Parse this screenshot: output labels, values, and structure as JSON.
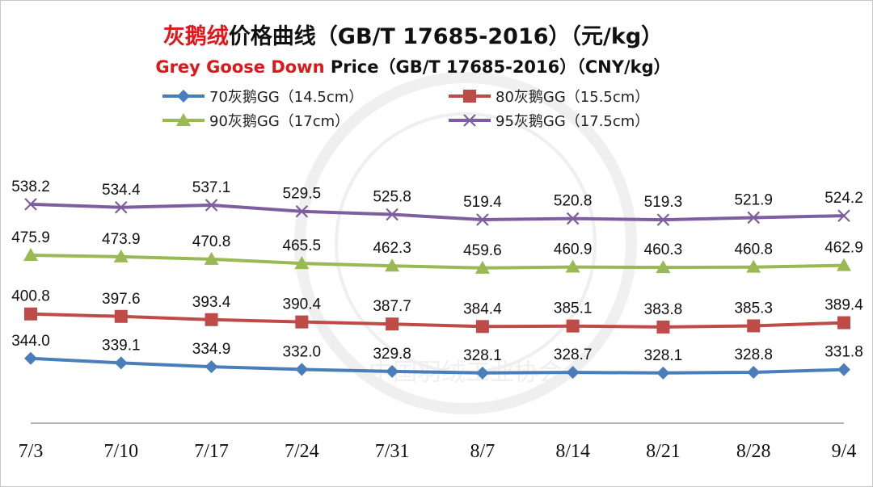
{
  "chart_data": {
    "type": "line",
    "title_cn_highlight": "灰鹅绒",
    "title_cn_rest": "价格曲线（GB/T 17685-2016）（元/kg）",
    "title_en_highlight": "Grey Goose Down",
    "title_en_rest": " Price（GB/T 17685-2016）（CNY/kg）",
    "watermark_text": "中国羽绒工业协会",
    "categories": [
      "7/3",
      "7/10",
      "7/17",
      "7/24",
      "7/31",
      "8/7",
      "8/14",
      "8/21",
      "8/28",
      "9/4"
    ],
    "series": [
      {
        "name": "70灰鹅GG（14.5cm）",
        "color": "#4a7ebb",
        "marker": "diamond",
        "values": [
          344.0,
          339.1,
          334.9,
          332.0,
          329.8,
          328.1,
          328.7,
          328.1,
          328.8,
          331.8
        ],
        "labels": [
          "344.0",
          "339.1",
          "334.9",
          "332.0",
          "329.8",
          "328.1",
          "328.7",
          "328.1",
          "328.8",
          "331.8"
        ]
      },
      {
        "name": "80灰鹅GG（15.5cm）",
        "color": "#be4b48",
        "marker": "square",
        "values": [
          400.8,
          397.6,
          393.4,
          390.4,
          387.7,
          384.4,
          385.1,
          383.8,
          385.3,
          389.4
        ],
        "labels": [
          "400.8",
          "397.6",
          "393.4",
          "390.4",
          "387.7",
          "384.4",
          "385.1",
          "383.8",
          "385.3",
          "389.4"
        ]
      },
      {
        "name": "90灰鹅GG（17cm）",
        "color": "#98b954",
        "marker": "triangle",
        "values": [
          475.9,
          473.9,
          470.8,
          465.5,
          462.3,
          459.6,
          460.9,
          460.3,
          460.8,
          462.9
        ],
        "labels": [
          "475.9",
          "473.9",
          "470.8",
          "465.5",
          "462.3",
          "459.6",
          "460.9",
          "460.3",
          "460.8",
          "462.9"
        ]
      },
      {
        "name": "95灰鹅GG（17.5cm）",
        "color": "#7d5fa0",
        "marker": "x",
        "values": [
          538.2,
          534.4,
          537.1,
          529.5,
          525.8,
          519.4,
          520.8,
          519.3,
          521.9,
          524.2
        ],
        "labels": [
          "538.2",
          "534.4",
          "537.1",
          "529.5",
          "525.8",
          "519.4",
          "520.8",
          "519.3",
          "521.9",
          "524.2"
        ]
      }
    ],
    "legend_position": "top",
    "grid": false
  }
}
